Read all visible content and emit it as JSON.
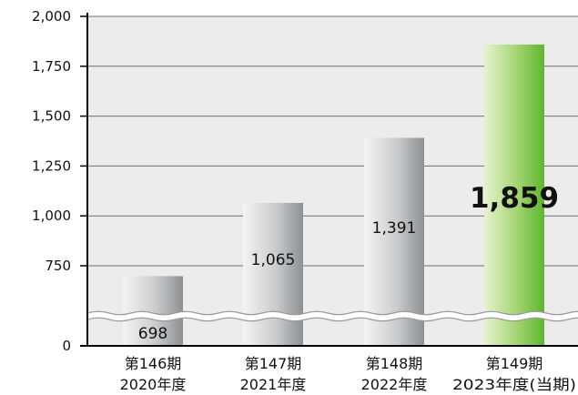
{
  "chart_data": {
    "type": "bar",
    "categories": [
      {
        "period": "第146期",
        "year": "2020年度"
      },
      {
        "period": "第147期",
        "year": "2021年度"
      },
      {
        "period": "第148期",
        "year": "2022年度"
      },
      {
        "period": "第149期",
        "year": "2023年度(当期)"
      }
    ],
    "values": [
      698,
      1065,
      1391,
      1859
    ],
    "value_labels": [
      "698",
      "1,065",
      "1,391",
      "1,859"
    ],
    "y_ticks": [
      {
        "value": 0,
        "label": "0"
      },
      {
        "value": 750,
        "label": "750"
      },
      {
        "value": 1000,
        "label": "1,000"
      },
      {
        "value": 1250,
        "label": "1,250"
      },
      {
        "value": 1500,
        "label": "1,500"
      },
      {
        "value": 1750,
        "label": "1,750"
      },
      {
        "value": 2000,
        "label": "2,000"
      }
    ],
    "ylim": [
      0,
      2000
    ],
    "axis_break": true,
    "grid": true,
    "highlight_index": 3,
    "colors": {
      "bar": "#b8bbbe",
      "bar_highlight": "#7bc242",
      "grid": "#6e6e6e",
      "background": "#ececec",
      "axis": "#000000"
    }
  }
}
